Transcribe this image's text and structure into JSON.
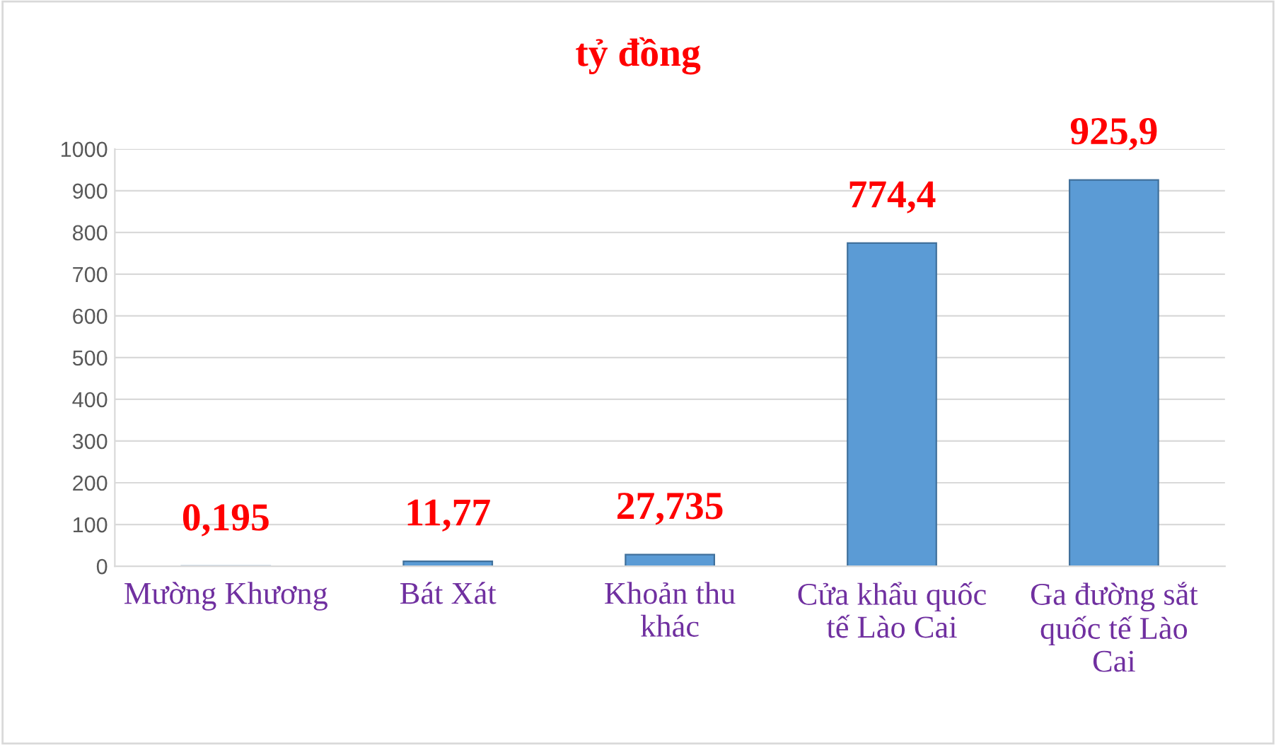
{
  "chart_data": {
    "type": "bar",
    "title": "tỷ đồng",
    "categories": [
      "Mường Khương",
      "Bát Xát",
      "Khoản thu khác",
      "Cửa khẩu quốc tế Lào Cai",
      "Ga đường sắt quốc tế Lào Cai"
    ],
    "values": [
      0.195,
      11.77,
      27.735,
      774.4,
      925.9
    ],
    "value_labels": [
      "0,195",
      "11,77",
      "27,735",
      "774,4",
      "925,9"
    ],
    "color": "#5b9bd5",
    "ylim": [
      0,
      1000
    ],
    "yticks": [
      0,
      100,
      200,
      300,
      400,
      500,
      600,
      700,
      800,
      900,
      1000
    ],
    "grid": "y",
    "legend": false
  }
}
